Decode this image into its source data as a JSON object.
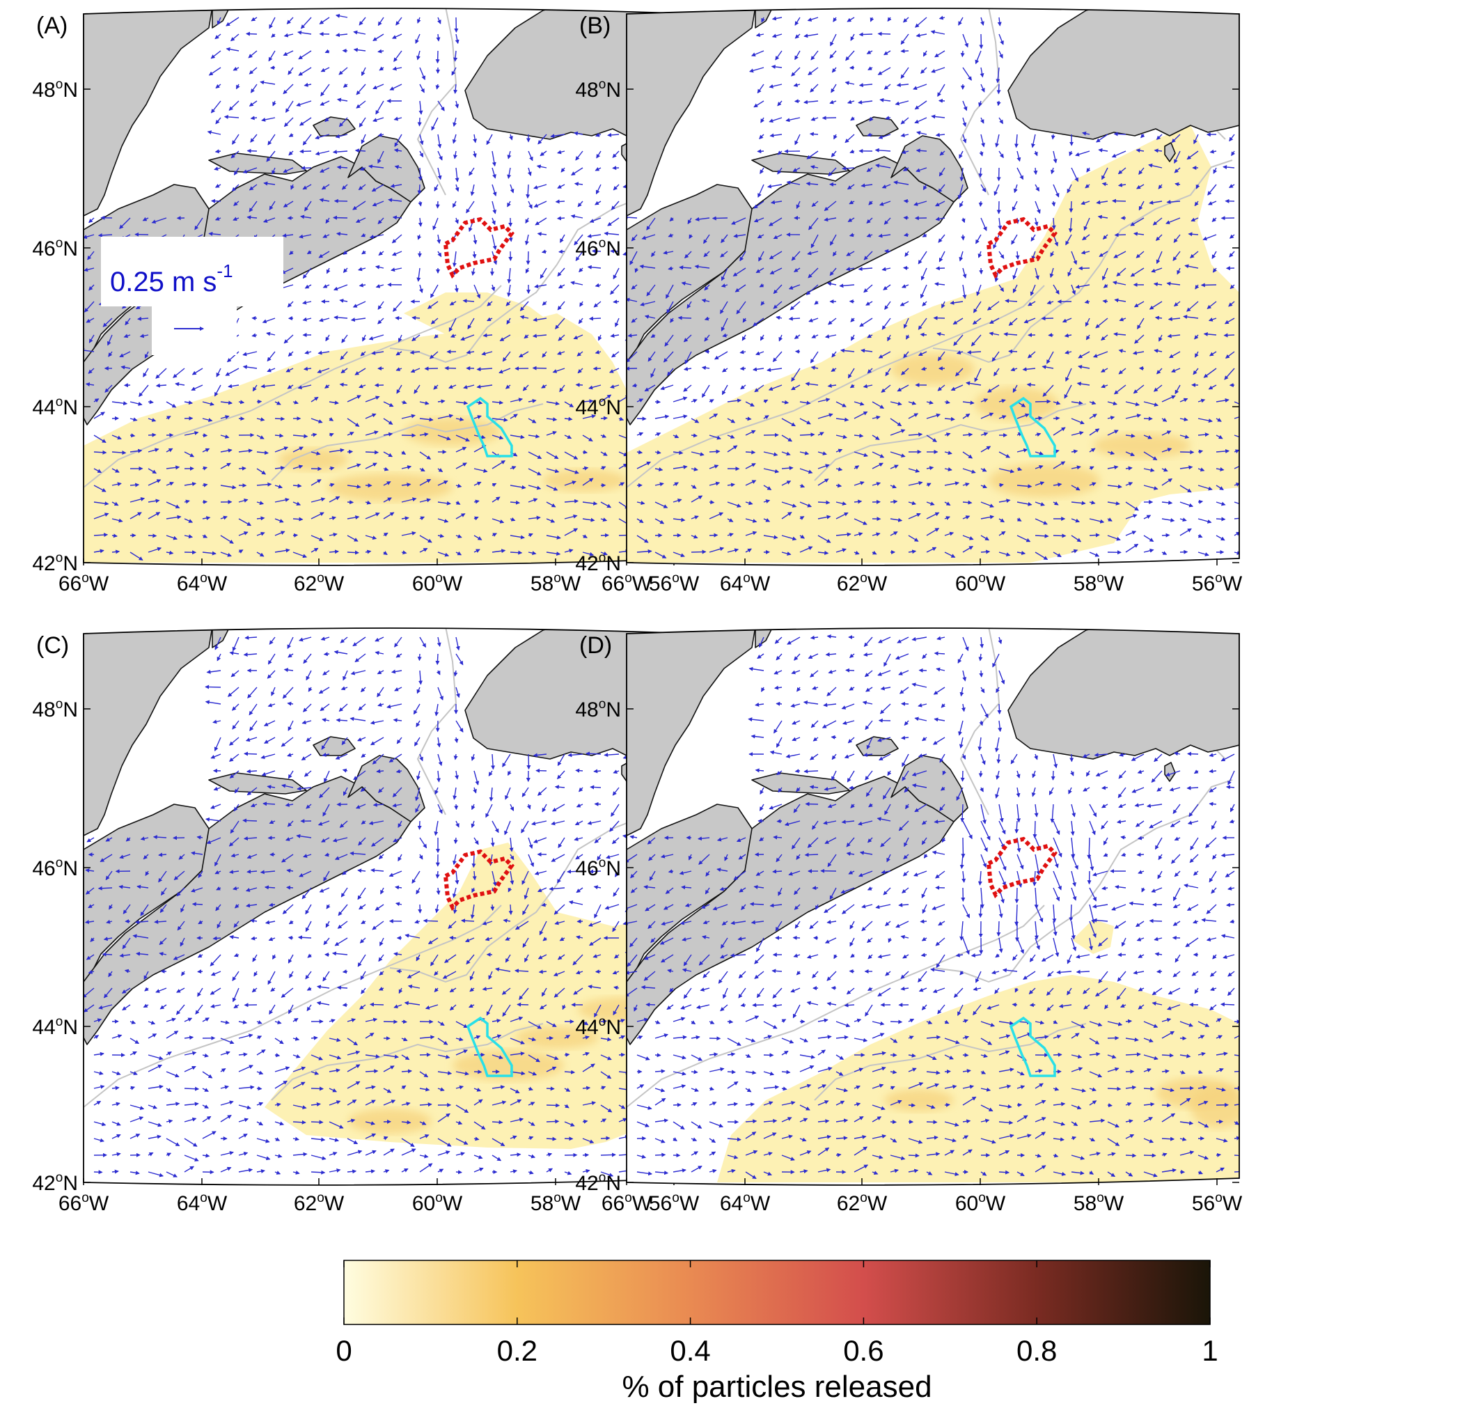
{
  "panels": [
    {
      "label": "(A)"
    },
    {
      "label": "(B)"
    },
    {
      "label": "(C)"
    },
    {
      "label": "(D)"
    }
  ],
  "axes": {
    "lat_labels": [
      "48",
      "46",
      "44",
      "42"
    ],
    "lon_labels": [
      "66",
      "64",
      "62",
      "60",
      "58",
      "56"
    ],
    "deg": "o",
    "lat_suffix": "N",
    "lon_suffix": "W"
  },
  "scale_arrow": {
    "value_text": "0.25 m s",
    "exponent": "-1",
    "color": "#1010c8"
  },
  "colorbar": {
    "title": "% of particles released",
    "ticks": [
      "0",
      "0.2",
      "0.4",
      "0.6",
      "0.8",
      "1"
    ],
    "range": [
      0,
      1
    ],
    "colors": [
      "#fffde0",
      "#f6c35a",
      "#e98a52",
      "#d34e4c",
      "#7a2b22",
      "#1a1508"
    ]
  },
  "colors": {
    "land": "#c8c8c8",
    "current_arrows": "#2b2bd0",
    "isobath": "#c4c4c4",
    "red_region": "#e01010",
    "cyan_region": "#28e0e8",
    "particle_density_low": "#fdf0b0"
  }
}
